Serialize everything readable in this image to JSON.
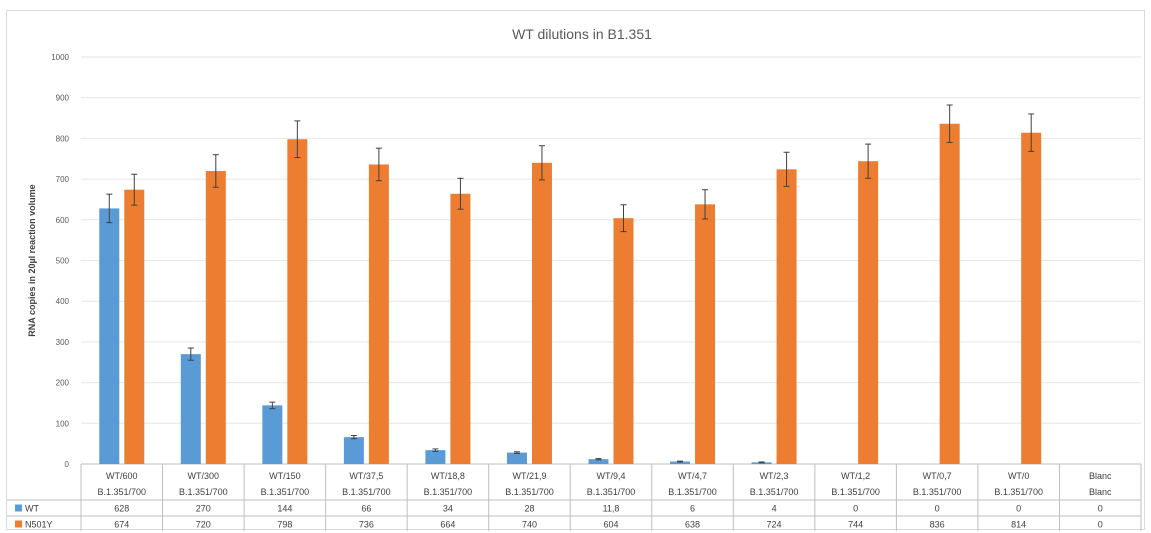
{
  "chart_data": {
    "type": "bar",
    "title": "WT dilutions in B1.351",
    "ylabel": "RNA copies in 20µl reaction volume",
    "xlabel": "",
    "ylim": [
      0,
      1000
    ],
    "yticks": [
      0,
      100,
      200,
      300,
      400,
      500,
      600,
      700,
      800,
      900,
      1000
    ],
    "grid": true,
    "legend_position": "data-table",
    "categories": [
      [
        "WT/600",
        "B.1.351/700"
      ],
      [
        "WT/300",
        "B.1.351/700"
      ],
      [
        "WT/150",
        "B.1.351/700"
      ],
      [
        "WT/37,5",
        "B.1.351/700"
      ],
      [
        "WT/18,8",
        "B.1.351/700"
      ],
      [
        "WT/21,9",
        "B.1.351/700"
      ],
      [
        "WT/9,4",
        "B.1.351/700"
      ],
      [
        "WT/4,7",
        "B.1.351/700"
      ],
      [
        "WT/2,3",
        "B.1.351/700"
      ],
      [
        "WT/1,2",
        "B.1.351/700"
      ],
      [
        "WT/0,7",
        "B.1.351/700"
      ],
      [
        "WT/0",
        "B.1.351/700"
      ],
      [
        "Blanc",
        "Blanc"
      ]
    ],
    "series": [
      {
        "name": "WT",
        "color": "#5b9bd5",
        "values": [
          628,
          270,
          144,
          66,
          34,
          28,
          11.8,
          6,
          4,
          0,
          0,
          0,
          0
        ],
        "labels": [
          "628",
          "270",
          "144",
          "66",
          "34",
          "28",
          "11,8",
          "6",
          "4",
          "0",
          "0",
          "0",
          "0"
        ],
        "errors": [
          35,
          15,
          8,
          4,
          3,
          2,
          1.5,
          1,
          1,
          0,
          0,
          0,
          0
        ]
      },
      {
        "name": "N501Y",
        "color": "#ed7d31",
        "values": [
          674,
          720,
          798,
          736,
          664,
          740,
          604,
          638,
          724,
          744,
          836,
          814,
          0
        ],
        "labels": [
          "674",
          "720",
          "798",
          "736",
          "664",
          "740",
          "604",
          "638",
          "724",
          "744",
          "836",
          "814",
          "0"
        ],
        "errors": [
          38,
          40,
          45,
          40,
          38,
          42,
          33,
          36,
          42,
          42,
          46,
          46,
          0
        ]
      }
    ]
  }
}
